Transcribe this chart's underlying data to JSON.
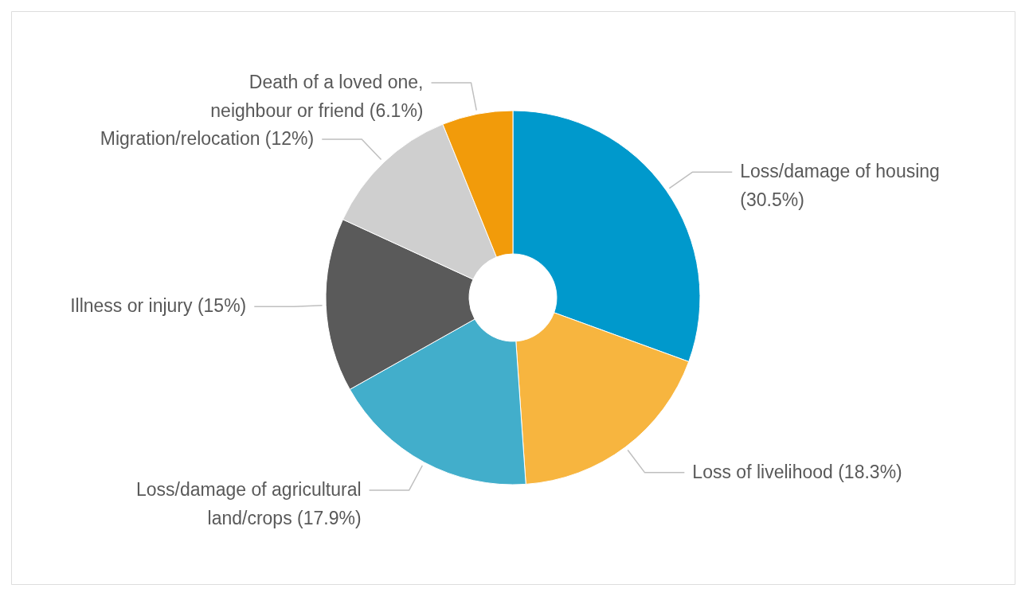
{
  "chart_data": {
    "type": "donut",
    "categories": [
      "Loss/damage of housing",
      "Loss of livelihood",
      "Loss/damage of agricultural land/crops",
      "Illness or injury",
      "Migration/relocation",
      "Death of a loved one, neighbour or friend"
    ],
    "values": [
      30.5,
      18.3,
      17.9,
      15,
      12,
      6.1
    ],
    "colors": [
      "#0099cc",
      "#f7b53f",
      "#42aecb",
      "#5a5a5a",
      "#cfcfcf",
      "#f29b0a"
    ],
    "value_labels": [
      "(30.5%)",
      "(18.3%)",
      "(17.9%)",
      "(15%)",
      "(12%)",
      "(6.1%)"
    ]
  }
}
